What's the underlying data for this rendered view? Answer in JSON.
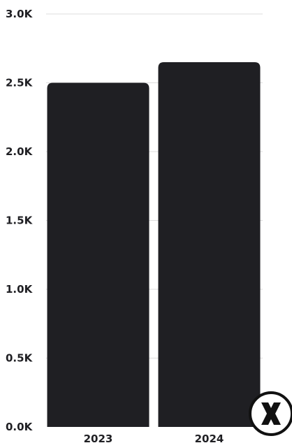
{
  "chart_data": {
    "type": "bar",
    "categories": [
      "2023",
      "2024"
    ],
    "values": [
      2500,
      2650
    ],
    "title": "",
    "xlabel": "",
    "ylabel": "",
    "ylim": [
      0,
      3000
    ],
    "yticks": [
      0,
      500,
      1000,
      1500,
      2000,
      2500,
      3000
    ],
    "ytick_labels": [
      "0.0K",
      "0.5K",
      "1.0K",
      "1.5K",
      "2.0K",
      "2.5K",
      "3.0K"
    ],
    "grid": true,
    "bar_color": "#1f1f23",
    "grid_color": "#dcdcdc"
  },
  "logo": {
    "icon": "close-x-logo-icon",
    "color": "#111111"
  }
}
